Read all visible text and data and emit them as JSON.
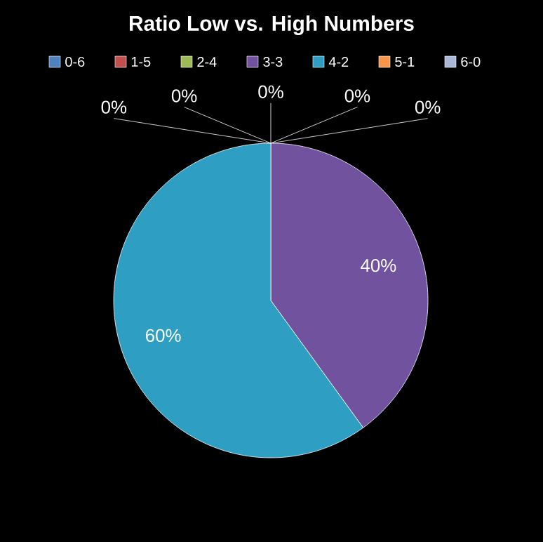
{
  "chart_data": {
    "type": "pie",
    "title": "Ratio Low vs. High Numbers",
    "categories": [
      "0-6",
      "1-5",
      "2-4",
      "3-3",
      "4-2",
      "5-1",
      "6-0"
    ],
    "values": [
      0,
      0,
      0,
      40,
      60,
      0,
      0
    ],
    "value_labels": [
      "0%",
      "0%",
      "0%",
      "40%",
      "60%",
      "0%",
      "0%"
    ],
    "colors": [
      "#4f81bd",
      "#c0504d",
      "#9bbb59",
      "#71529e",
      "#2e9fc2",
      "#f79646",
      "#a9b8d9"
    ],
    "legend": "top"
  }
}
